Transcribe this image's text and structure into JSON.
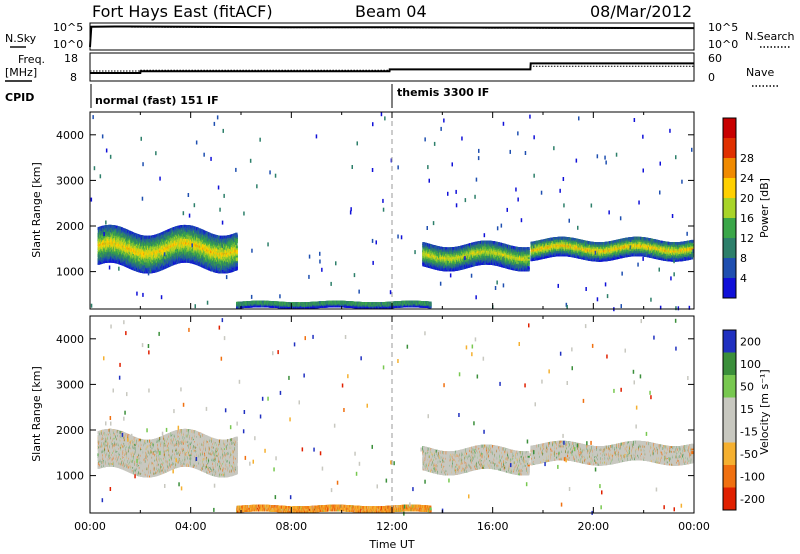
{
  "header": {
    "station": "Fort Hays East (fitACF)",
    "beam": "Beam 04",
    "date": "08/Mar/2012"
  },
  "sky_panel": {
    "left_label": "N.Sky",
    "right_label": "N.Search",
    "left_ticks": [
      "10^5",
      "10^0"
    ],
    "right_ticks": [
      "10^5",
      "10^0"
    ]
  },
  "freq_panel": {
    "left_label_1": "Freq.",
    "left_label_2": "[MHz]",
    "right_label": "Nave",
    "left_ticks": [
      "18",
      "8"
    ],
    "right_ticks": [
      "60",
      "0"
    ]
  },
  "cpid_panel": {
    "label": "CPID",
    "mode_1": "normal (fast) 151 IF",
    "mode_2": "themis 3300 IF"
  },
  "power_panel": {
    "ylabel": "Slant Range [km]",
    "yticks": [
      "1000",
      "2000",
      "3000",
      "4000"
    ],
    "colorbar_label": "Power [dB]",
    "colorbar_ticks": [
      "4",
      "8",
      "12",
      "16",
      "20",
      "24",
      "28"
    ]
  },
  "velocity_panel": {
    "ylabel": "Slant Range [km]",
    "yticks": [
      "1000",
      "2000",
      "3000",
      "4000"
    ],
    "colorbar_label": "Velocity [m s⁻¹]",
    "colorbar_ticks": [
      "200",
      "100",
      "50",
      "15",
      "-15",
      "-50",
      "-100",
      "-200"
    ]
  },
  "xaxis": {
    "label": "Time UT",
    "ticks": [
      "00:00",
      "04:00",
      "08:00",
      "12:00",
      "16:00",
      "20:00",
      "00:00"
    ]
  },
  "colors": {
    "power_scale": [
      "#1010d8",
      "#1f4fb0",
      "#2d7f6a",
      "#3aa648",
      "#a8d428",
      "#ffd000",
      "#f08a00",
      "#e03000",
      "#c80000"
    ],
    "velocity_scale": [
      "#2030c0",
      "#3b8f3b",
      "#78c850",
      "#c8c8c0",
      "#c8c8c0",
      "#f5b030",
      "#f07010",
      "#e02000"
    ]
  },
  "chart_data": [
    {
      "type": "line",
      "title": "N.Sky / N.Search",
      "x_range_hours": [
        0,
        24
      ],
      "series": [
        {
          "name": "N.Sky",
          "x": [
            0.0,
            0.05,
            1,
            4,
            8,
            12,
            16,
            20,
            24
          ],
          "y": [
            1,
            40000,
            45000,
            38000,
            30000,
            30000,
            25000,
            22000,
            20000
          ]
        },
        {
          "name": "N.Search",
          "x": [
            0.0,
            0.05,
            1,
            4,
            8,
            12,
            16,
            20,
            24
          ],
          "y": [
            1,
            35000,
            36000,
            30000,
            25000,
            24000,
            20000,
            18000,
            16000
          ]
        }
      ]
    },
    {
      "type": "line",
      "title": "Freq. / Nave",
      "x_range_hours": [
        0,
        24
      ],
      "series": [
        {
          "name": "Freq.",
          "x": [
            0,
            2,
            2.01,
            11.9,
            11.91,
            13.5,
            13.51,
            17.5,
            17.51,
            24
          ],
          "y": [
            10.5,
            10.5,
            11.2,
            11.2,
            12.0,
            12.0,
            12.0,
            12.0,
            14.5,
            14.5
          ]
        },
        {
          "name": "Nave",
          "x": [
            0,
            2,
            2.01,
            11.9,
            11.91,
            13.5,
            13.51,
            17.5,
            17.51,
            24
          ],
          "y": [
            20,
            20,
            22,
            22,
            25,
            25,
            25,
            25,
            32,
            32
          ]
        }
      ]
    },
    {
      "type": "heatmap",
      "title": "Power",
      "xlabel": "Time UT",
      "ylabel": "Slant Range [km]",
      "x_range_hours": [
        0,
        24
      ],
      "ylim": [
        180,
        4500
      ],
      "zlabel": "Power [dB]",
      "zlim": [
        0,
        32
      ],
      "regions": [
        {
          "t_start": 0.3,
          "t_end": 5.8,
          "range_center": 1500,
          "range_width": 800,
          "power": 20
        },
        {
          "t_start": 13.2,
          "t_end": 17.4,
          "range_center": 1350,
          "range_width": 500,
          "power": 18
        },
        {
          "t_start": 17.5,
          "t_end": 23.9,
          "range_center": 1500,
          "range_width": 400,
          "power": 20
        },
        {
          "t_start": 5.8,
          "t_end": 13.5,
          "range_center": 280,
          "range_width": 120,
          "power": 14
        }
      ]
    },
    {
      "type": "heatmap",
      "title": "Velocity",
      "xlabel": "Time UT",
      "ylabel": "Slant Range [km]",
      "x_range_hours": [
        0,
        24
      ],
      "ylim": [
        180,
        4500
      ],
      "zlabel": "Velocity [m s⁻¹]",
      "zlim": [
        -250,
        250
      ],
      "regions": [
        {
          "t_start": 0.3,
          "t_end": 5.8,
          "range_center": 1500,
          "range_width": 800,
          "velocity": 0
        },
        {
          "t_start": 13.2,
          "t_end": 17.4,
          "range_center": 1350,
          "range_width": 500,
          "velocity": 0
        },
        {
          "t_start": 17.5,
          "t_end": 23.9,
          "range_center": 1500,
          "range_width": 400,
          "velocity": 0
        },
        {
          "t_start": 5.8,
          "t_end": 13.5,
          "range_center": 280,
          "range_width": 120,
          "velocity": -45
        }
      ]
    }
  ]
}
